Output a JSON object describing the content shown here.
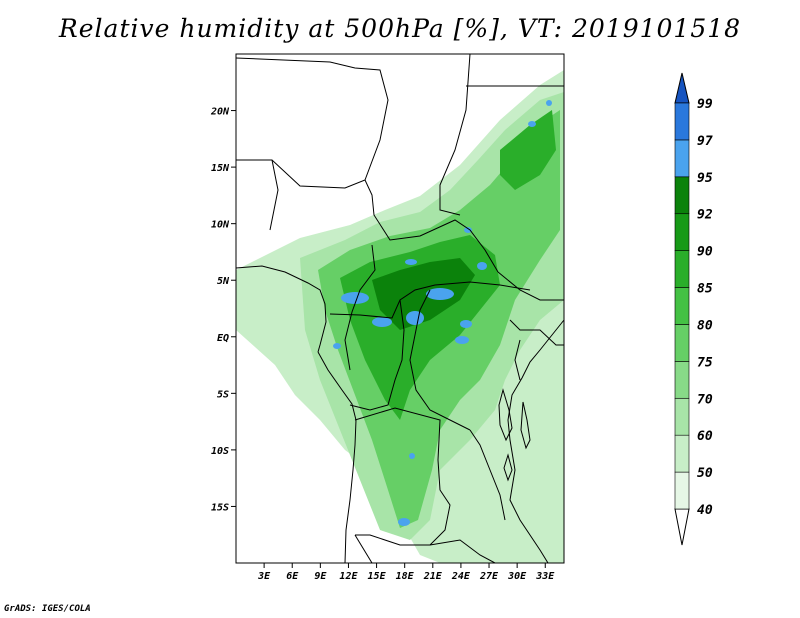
{
  "title": "Relative humidity at 500hPa [%], VT: 2019101518",
  "credit": "GrADS: IGES/COLA",
  "map": {
    "lon_range": [
      0,
      35
    ],
    "lat_range": [
      -20,
      25
    ],
    "x_ticks": [
      {
        "value": 3,
        "label": "3E"
      },
      {
        "value": 6,
        "label": "6E"
      },
      {
        "value": 9,
        "label": "9E"
      },
      {
        "value": 12,
        "label": "12E"
      },
      {
        "value": 15,
        "label": "15E"
      },
      {
        "value": 18,
        "label": "18E"
      },
      {
        "value": 21,
        "label": "21E"
      },
      {
        "value": 24,
        "label": "24E"
      },
      {
        "value": 27,
        "label": "27E"
      },
      {
        "value": 30,
        "label": "30E"
      },
      {
        "value": 33,
        "label": "33E"
      }
    ],
    "y_ticks": [
      {
        "value": 20,
        "label": "20N"
      },
      {
        "value": 15,
        "label": "15N"
      },
      {
        "value": 10,
        "label": "10N"
      },
      {
        "value": 5,
        "label": "5N"
      },
      {
        "value": 0,
        "label": "EQ"
      },
      {
        "value": -5,
        "label": "5S"
      },
      {
        "value": -10,
        "label": "10S"
      },
      {
        "value": -15,
        "label": "15S"
      }
    ]
  },
  "colorbar": {
    "levels": [
      "40",
      "50",
      "60",
      "70",
      "75",
      "80",
      "85",
      "90",
      "92",
      "95",
      "97",
      "99"
    ],
    "colors": [
      "#ffffff",
      "#e6f7e6",
      "#c8eec8",
      "#a8e4a8",
      "#88da88",
      "#66cf66",
      "#44c144",
      "#2aae2a",
      "#179a17",
      "#0b820b",
      "#4aa3ee",
      "#2a78dc",
      "#1654c0"
    ]
  }
}
